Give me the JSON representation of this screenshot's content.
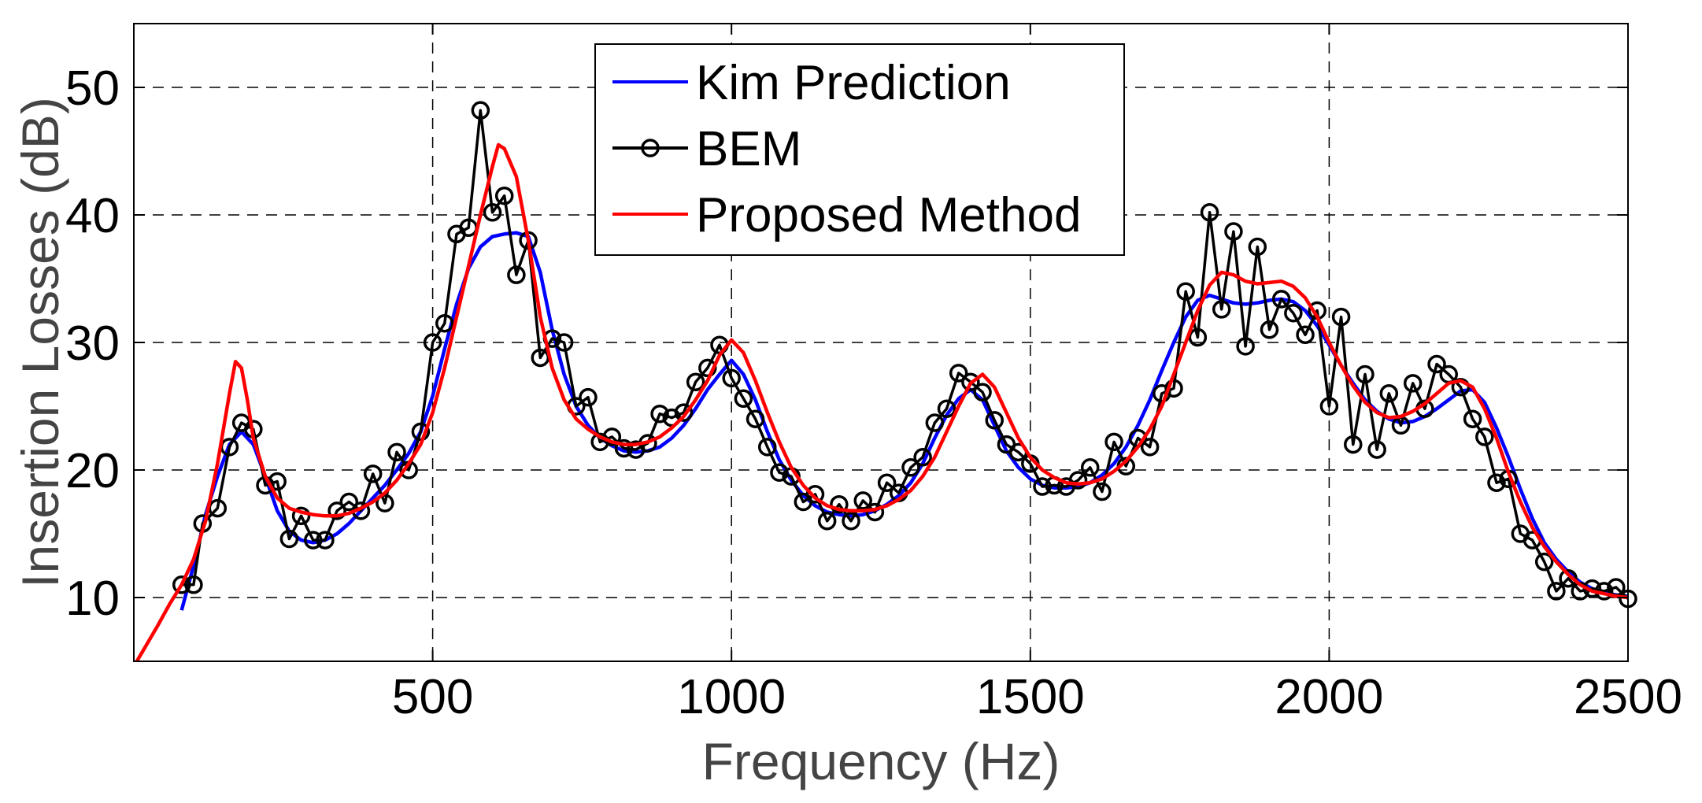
{
  "chart_data": {
    "type": "line",
    "title": "",
    "xlabel": "Frequency (Hz)",
    "ylabel": "Insertion Losses (dB)",
    "xlim": [
      0,
      2500
    ],
    "ylim": [
      5,
      55
    ],
    "xticks": [
      500,
      1000,
      1500,
      2000,
      2500
    ],
    "yticks": [
      10,
      20,
      30,
      40,
      50
    ],
    "xtick_labels": [
      "500",
      "1000",
      "1500",
      "2000",
      "2500"
    ],
    "ytick_labels": [
      "10",
      "20",
      "30",
      "40",
      "50"
    ],
    "grid": true,
    "legend_position": "top-center",
    "series": [
      {
        "name": "Kim Prediction",
        "color": "#0000ff",
        "marker": "none",
        "x": [
          80,
          100,
          120,
          140,
          160,
          180,
          200,
          220,
          240,
          260,
          280,
          300,
          320,
          340,
          360,
          380,
          400,
          420,
          440,
          460,
          480,
          500,
          520,
          540,
          560,
          580,
          600,
          620,
          640,
          660,
          680,
          700,
          720,
          740,
          760,
          780,
          800,
          820,
          840,
          860,
          880,
          900,
          920,
          940,
          960,
          980,
          1000,
          1020,
          1040,
          1060,
          1080,
          1100,
          1120,
          1140,
          1160,
          1180,
          1200,
          1220,
          1240,
          1260,
          1280,
          1300,
          1320,
          1340,
          1360,
          1380,
          1400,
          1420,
          1440,
          1460,
          1480,
          1500,
          1520,
          1540,
          1560,
          1580,
          1600,
          1620,
          1640,
          1660,
          1680,
          1700,
          1720,
          1740,
          1760,
          1780,
          1800,
          1820,
          1840,
          1860,
          1880,
          1900,
          1920,
          1940,
          1960,
          1980,
          2000,
          2020,
          2040,
          2060,
          2080,
          2100,
          2120,
          2140,
          2160,
          2180,
          2200,
          2220,
          2240,
          2260,
          2280,
          2300,
          2320,
          2340,
          2360,
          2380,
          2400,
          2420,
          2440,
          2460,
          2480,
          2500
        ],
        "y": [
          9.0,
          12.5,
          16.5,
          19.5,
          22.0,
          23.0,
          22.0,
          19.5,
          16.8,
          15.2,
          14.5,
          14.3,
          14.5,
          15.0,
          15.8,
          16.8,
          17.8,
          18.8,
          20.0,
          21.3,
          23.0,
          25.8,
          29.5,
          33.0,
          35.8,
          37.5,
          38.3,
          38.5,
          38.6,
          38.3,
          35.5,
          31.0,
          27.5,
          25.0,
          23.5,
          22.5,
          21.9,
          21.5,
          21.4,
          21.5,
          21.8,
          22.5,
          23.5,
          24.8,
          26.3,
          27.5,
          28.6,
          27.5,
          25.5,
          23.0,
          20.8,
          19.2,
          18.0,
          17.2,
          16.7,
          16.5,
          16.4,
          16.5,
          16.8,
          17.3,
          18.0,
          19.0,
          20.5,
          22.5,
          24.3,
          25.6,
          26.3,
          25.5,
          23.5,
          21.5,
          20.2,
          19.3,
          18.8,
          18.6,
          18.6,
          18.7,
          19.0,
          19.6,
          20.5,
          21.8,
          23.5,
          25.5,
          27.8,
          30.0,
          32.0,
          33.3,
          33.7,
          33.4,
          33.1,
          33.0,
          33.1,
          33.3,
          33.4,
          33.2,
          32.5,
          31.3,
          29.8,
          28.2,
          26.8,
          25.5,
          24.6,
          24.0,
          23.7,
          23.8,
          24.2,
          24.8,
          25.5,
          26.2,
          26.3,
          25.3,
          23.3,
          21.0,
          18.5,
          16.2,
          14.3,
          13.0,
          12.0,
          11.2,
          10.7,
          10.4,
          10.2,
          10.1
        ]
      },
      {
        "name": "BEM",
        "color": "#000000",
        "marker": "circle",
        "x": [
          80,
          100,
          115,
          140,
          160,
          180,
          200,
          220,
          240,
          260,
          280,
          300,
          320,
          340,
          360,
          380,
          400,
          420,
          440,
          460,
          480,
          500,
          520,
          540,
          560,
          580,
          600,
          620,
          640,
          660,
          680,
          700,
          720,
          740,
          760,
          780,
          800,
          820,
          840,
          860,
          880,
          900,
          920,
          940,
          960,
          980,
          1000,
          1020,
          1040,
          1060,
          1080,
          1100,
          1120,
          1140,
          1160,
          1180,
          1200,
          1220,
          1240,
          1260,
          1280,
          1300,
          1320,
          1340,
          1360,
          1380,
          1400,
          1420,
          1440,
          1460,
          1480,
          1500,
          1520,
          1540,
          1560,
          1580,
          1600,
          1620,
          1640,
          1660,
          1680,
          1700,
          1720,
          1740,
          1760,
          1780,
          1800,
          1820,
          1840,
          1860,
          1880,
          1900,
          1920,
          1940,
          1960,
          1980,
          2000,
          2020,
          2040,
          2060,
          2080,
          2100,
          2120,
          2140,
          2160,
          2180,
          2200,
          2220,
          2240,
          2260,
          2280,
          2300,
          2320,
          2340,
          2360,
          2380,
          2400,
          2420,
          2440,
          2460,
          2480,
          2500
        ],
        "y": [
          11.0,
          11.0,
          15.8,
          17.0,
          21.8,
          23.7,
          23.2,
          18.8,
          19.1,
          14.6,
          16.4,
          14.5,
          14.5,
          16.8,
          17.5,
          16.8,
          19.7,
          17.4,
          21.4,
          20.0,
          23.0,
          30.0,
          31.5,
          38.5,
          39.0,
          48.2,
          40.2,
          41.5,
          35.3,
          38.0,
          28.8,
          30.3,
          30.0,
          25.0,
          25.7,
          22.2,
          22.6,
          21.7,
          21.6,
          22.1,
          24.4,
          24.1,
          24.5,
          26.9,
          28.0,
          29.8,
          27.2,
          25.6,
          24.0,
          21.8,
          19.8,
          19.5,
          17.5,
          18.1,
          16.0,
          17.3,
          16.0,
          17.6,
          16.7,
          19.0,
          18.2,
          20.2,
          21.0,
          23.7,
          24.8,
          27.6,
          26.9,
          26.1,
          23.9,
          22.0,
          21.4,
          20.5,
          18.7,
          18.8,
          18.7,
          19.2,
          20.2,
          18.3,
          22.2,
          20.3,
          22.5,
          21.8,
          26.0,
          26.4,
          34.0,
          30.4,
          40.2,
          32.6,
          38.7,
          29.7,
          37.5,
          31.0,
          33.4,
          32.3,
          30.6,
          32.5,
          25.0,
          32.0,
          22.0,
          27.5,
          21.6,
          26.0,
          23.5,
          26.8,
          24.8,
          28.3,
          27.5,
          26.5,
          24.0,
          22.6,
          19.0,
          19.3,
          15.0,
          14.5,
          12.8,
          10.5,
          11.5,
          10.5,
          10.7,
          10.5,
          10.8,
          9.9
        ]
      },
      {
        "name": "Proposed Method",
        "color": "#ff0000",
        "marker": "none",
        "x": [
          5,
          20,
          40,
          60,
          80,
          100,
          120,
          140,
          160,
          170,
          180,
          190,
          200,
          220,
          240,
          260,
          280,
          300,
          320,
          340,
          360,
          380,
          400,
          420,
          440,
          460,
          480,
          500,
          520,
          540,
          560,
          580,
          600,
          610,
          620,
          640,
          660,
          680,
          700,
          720,
          740,
          760,
          780,
          800,
          820,
          840,
          860,
          880,
          900,
          920,
          940,
          960,
          980,
          1000,
          1020,
          1040,
          1060,
          1080,
          1100,
          1120,
          1140,
          1160,
          1180,
          1200,
          1220,
          1240,
          1260,
          1280,
          1300,
          1320,
          1340,
          1360,
          1380,
          1400,
          1420,
          1440,
          1460,
          1480,
          1500,
          1520,
          1540,
          1560,
          1580,
          1600,
          1620,
          1640,
          1660,
          1680,
          1700,
          1720,
          1740,
          1760,
          1780,
          1800,
          1820,
          1840,
          1860,
          1880,
          1900,
          1920,
          1940,
          1960,
          1980,
          2000,
          2020,
          2040,
          2060,
          2080,
          2100,
          2120,
          2140,
          2160,
          2180,
          2200,
          2220,
          2240,
          2260,
          2280,
          2300,
          2320,
          2340,
          2360,
          2380,
          2400,
          2420,
          2440,
          2460,
          2480,
          2500
        ],
        "y": [
          5.0,
          6.2,
          7.8,
          9.5,
          11.0,
          13.0,
          16.0,
          20.5,
          26.0,
          28.5,
          28.0,
          25.5,
          22.5,
          19.5,
          17.8,
          17.0,
          16.7,
          16.5,
          16.4,
          16.4,
          16.6,
          17.0,
          17.5,
          18.2,
          19.2,
          20.5,
          22.0,
          24.5,
          28.0,
          32.0,
          36.0,
          40.0,
          43.8,
          45.5,
          45.2,
          43.0,
          38.0,
          32.0,
          28.0,
          25.5,
          24.0,
          23.2,
          22.6,
          22.2,
          22.0,
          22.0,
          22.2,
          22.6,
          23.3,
          24.2,
          25.5,
          27.0,
          29.0,
          30.2,
          29.2,
          27.0,
          24.5,
          22.2,
          20.2,
          18.8,
          17.8,
          17.2,
          16.9,
          16.8,
          16.8,
          16.9,
          17.2,
          17.7,
          18.4,
          19.5,
          21.0,
          23.0,
          25.0,
          26.8,
          27.5,
          26.5,
          24.5,
          22.5,
          21.0,
          20.0,
          19.4,
          19.0,
          18.9,
          19.0,
          19.3,
          19.9,
          20.7,
          21.8,
          23.2,
          25.0,
          27.5,
          30.0,
          32.5,
          34.5,
          35.5,
          35.3,
          34.8,
          34.6,
          34.7,
          34.8,
          34.4,
          33.5,
          32.0,
          30.0,
          28.2,
          26.6,
          25.3,
          24.5,
          24.1,
          24.2,
          24.6,
          25.2,
          26.0,
          26.8,
          27.0,
          26.5,
          24.8,
          22.5,
          19.8,
          17.5,
          15.5,
          14.0,
          12.8,
          11.8,
          11.0,
          10.5,
          10.3,
          10.1,
          10.0
        ]
      }
    ]
  }
}
